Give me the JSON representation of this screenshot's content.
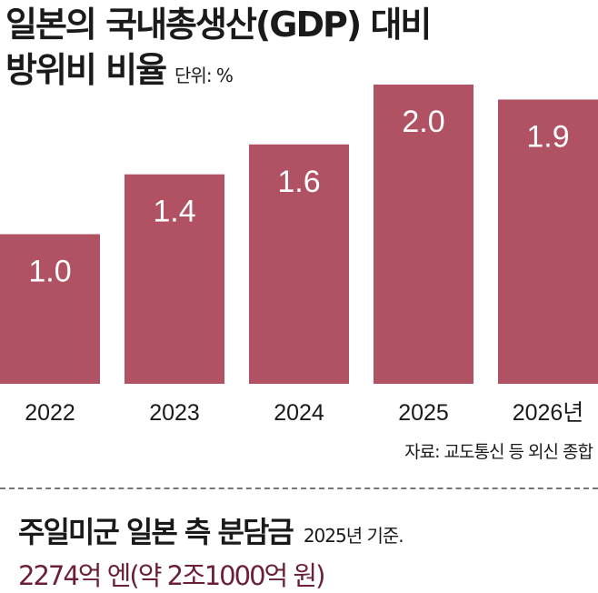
{
  "title_line1": "일본의 국내총생산(GDP) 대비",
  "title_line2": "방위비 비율",
  "unit": "단위: %",
  "source": "자료: 교도통신 등 외신 종합",
  "footer": {
    "heading": "주일미군 일본 측 분담금",
    "note": "2025년 기준.",
    "amount": "2274억 엔(약 2조1000억 원)"
  },
  "colors": {
    "bar": "#b05264",
    "accent_text": "#6b1f35"
  },
  "chart_data": {
    "type": "bar",
    "title": "일본의 국내총생산(GDP) 대비 방위비 비율",
    "ylabel": "단위: %",
    "categories": [
      "2022",
      "2023",
      "2024",
      "2025",
      "2026년"
    ],
    "values": [
      1.0,
      1.4,
      1.6,
      2.0,
      1.9
    ],
    "value_labels": [
      "1.0",
      "1.4",
      "1.6",
      "2.0",
      "1.9"
    ],
    "ylim": [
      0,
      2.0
    ],
    "grid": false
  }
}
